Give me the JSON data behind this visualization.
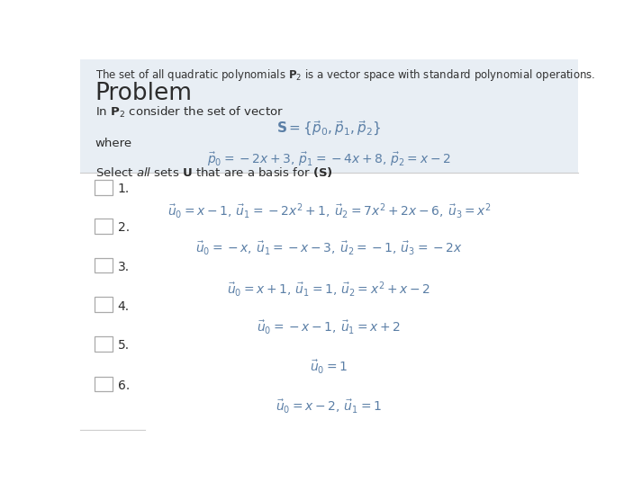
{
  "bg_color": "#f0f4f8",
  "white_bg": "#ffffff",
  "text_color": "#2c3e50",
  "math_color": "#5b7fa6",
  "header_text": "The set of all quadratic polynomials $\\mathbf{P}_2$ is a vector space with standard polynomial operations.",
  "problem_label": "Problem",
  "intro_text": "In $\\mathbf{P}_2$ consider the set of vector",
  "S_def": "$\\mathbf{S} = \\{\\vec{p}_0, \\vec{p}_1, \\vec{p}_2\\}$",
  "where_label": "where",
  "p_def": "$\\vec{p}_0 = -2x + 3,\\, \\vec{p}_1 = -4x + 8,\\, \\vec{p}_2 = x - 2$",
  "select_text": "Select $\\mathit{all}$ sets $\\mathbf{U}$ that are a basis for $\\mathbf{(S)}$",
  "options": [
    {
      "num": "1.",
      "formula": "$\\vec{u}_0 = x - 1,\\, \\vec{u}_1 = -2x^2 + 1,\\, \\vec{u}_2 = 7x^2 + 2x - 6,\\, \\vec{u}_3 = x^2$"
    },
    {
      "num": "2.",
      "formula": "$\\vec{u}_0 = -x,\\, \\vec{u}_1 = -x - 3,\\, \\vec{u}_2 = -1,\\, \\vec{u}_3 = -2x$"
    },
    {
      "num": "3.",
      "formula": "$\\vec{u}_0 = x + 1,\\, \\vec{u}_1 = 1,\\, \\vec{u}_2 = x^2 + x - 2$"
    },
    {
      "num": "4.",
      "formula": "$\\vec{u}_0 = -x - 1,\\, \\vec{u}_1 = x + 2$"
    },
    {
      "num": "5.",
      "formula": "$\\vec{u}_0 = 1$"
    },
    {
      "num": "6.",
      "formula": "$\\vec{u}_0 = x - 2,\\, \\vec{u}_1 = 1$"
    }
  ],
  "header_bg": "#e8eef4",
  "checkbox_color": "#aaaaaa",
  "num_color": "#2c2c2c",
  "separator_color": "#cccccc"
}
